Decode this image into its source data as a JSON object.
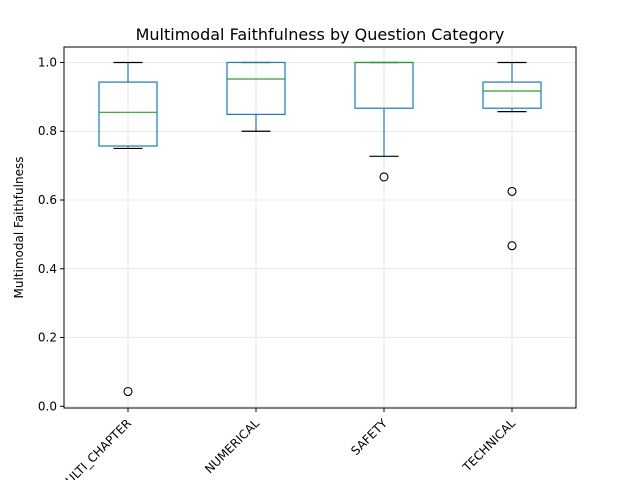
{
  "chart_data": {
    "type": "box",
    "title": "Multimodal Faithfulness by Question Category",
    "xlabel": "",
    "ylabel": "Multimodal Faithfulness",
    "ylim": [
      -0.005,
      1.045
    ],
    "yticks": [
      0.0,
      0.2,
      0.4,
      0.6,
      0.8,
      1.0
    ],
    "ytick_labels": [
      "0.0",
      "0.2",
      "0.4",
      "0.6",
      "0.8",
      "1.0"
    ],
    "grid": true,
    "categories": [
      "MULTI_CHAPTER",
      "NUMERICAL",
      "SAFETY",
      "TECHNICAL"
    ],
    "tick_labels": [
      "MULTI_CHAPTER",
      "NUMERICAL",
      "SAFETY",
      "TECHNICAL"
    ],
    "boxes": [
      {
        "category": "MULTI_CHAPTER",
        "whisker_low": 0.75,
        "q1": 0.757,
        "median": 0.855,
        "q3": 0.943,
        "whisker_high": 1.0,
        "outliers": [
          0.043
        ]
      },
      {
        "category": "NUMERICAL",
        "whisker_low": 0.8,
        "q1": 0.849,
        "median": 0.952,
        "q3": 1.0,
        "whisker_high": 1.0,
        "outliers": []
      },
      {
        "category": "SAFETY",
        "whisker_low": 0.727,
        "q1": 0.867,
        "median": 1.0,
        "q3": 1.0,
        "whisker_high": 1.0,
        "outliers": [
          0.667
        ]
      },
      {
        "category": "TECHNICAL",
        "whisker_low": 0.857,
        "q1": 0.867,
        "median": 0.917,
        "q3": 0.943,
        "whisker_high": 1.0,
        "outliers": [
          0.625,
          0.467
        ]
      }
    ],
    "colors": {
      "box": "#1f77b4",
      "median": "#2ca02c",
      "grid": "#e0e0e0",
      "axis": "#000000"
    }
  }
}
